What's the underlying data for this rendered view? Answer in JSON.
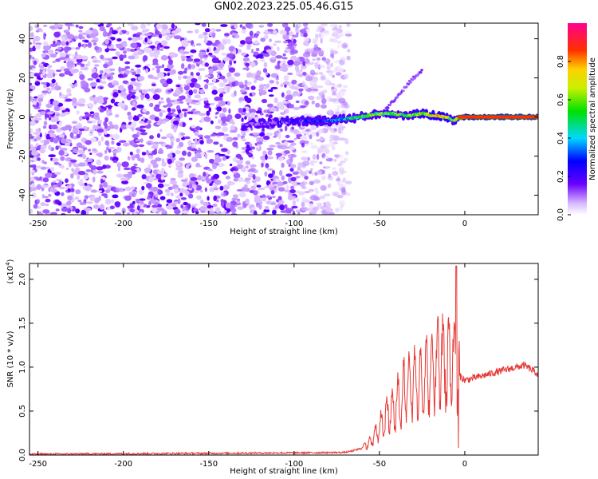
{
  "title": "GN02.2023.225.05.46.G15",
  "chart_data": [
    {
      "type": "heatmap",
      "xlabel": "Height of straight line (km)",
      "ylabel": "Frequency (Hz)",
      "xlim": [
        -255,
        43
      ],
      "ylim": [
        -50,
        48
      ],
      "xticks": [
        -250,
        -200,
        -150,
        -100,
        -50,
        0
      ],
      "yticks": [
        -40,
        -20,
        0,
        20,
        40
      ],
      "colorbar": {
        "label": "Normalized spectral amplitude",
        "range": [
          0.0,
          1.0
        ],
        "ticks": [
          "0.0",
          "0.2",
          "0.4",
          "0.6",
          "0.8"
        ],
        "colormap": "rainbow: white/lavender (0) → violet → blue → cyan → green → yellow → orange → red → magenta (1)"
      },
      "signal_track": {
        "x": [
          -130,
          -110,
          -100,
          -90,
          -80,
          -72,
          -65,
          -58,
          -52,
          -45,
          -40,
          -35,
          -30,
          -25,
          -20,
          -15,
          -10,
          -7,
          -5,
          0,
          10,
          20,
          30,
          43
        ],
        "frequency": [
          -4,
          -3,
          -2,
          -2,
          -2,
          -1,
          -0.5,
          0.5,
          1.5,
          2,
          1.5,
          0.5,
          1,
          2,
          1,
          0.5,
          -0.5,
          -2,
          -1,
          0,
          0,
          0,
          0,
          0
        ],
        "amplitude": [
          0.1,
          0.15,
          0.2,
          0.25,
          0.3,
          0.4,
          0.45,
          0.5,
          0.55,
          0.55,
          0.55,
          0.55,
          0.6,
          0.6,
          0.65,
          0.7,
          0.65,
          0.5,
          0.65,
          0.8,
          0.85,
          0.88,
          0.9,
          0.9
        ]
      },
      "harmonic_line": {
        "x": [
          -48,
          -42,
          -36,
          -30,
          -25
        ],
        "frequency": [
          2,
          8,
          14,
          20,
          24
        ]
      },
      "noise_region": {
        "x": [
          -255,
          -68
        ],
        "frequency": [
          -50,
          48
        ]
      }
    },
    {
      "type": "line",
      "xlabel": "Height of straight line (km)",
      "ylabel": "SNR (10 * v/v)",
      "scale_label": "(x10",
      "scale_exponent": "4",
      "scale_close": ")",
      "xlim": [
        -255,
        43
      ],
      "ylim": [
        0.0,
        2.18
      ],
      "xticks": [
        -250,
        -200,
        -150,
        -100,
        -50,
        0
      ],
      "yticks": [
        "0.0",
        "0.5",
        "1.0",
        "1.5",
        "2.0"
      ],
      "ytick_values": [
        0.0,
        0.5,
        1.0,
        1.5,
        2.0
      ],
      "series": [
        {
          "color": "#e53935",
          "x": [
            -255,
            -200,
            -150,
            -100,
            -70,
            -65,
            -60,
            -55,
            -50,
            -45,
            -40,
            -35,
            -30,
            -25,
            -20,
            -15,
            -10,
            -7,
            -5,
            -3,
            0,
            10,
            20,
            30,
            35,
            43
          ],
          "y": [
            0.01,
            0.015,
            0.02,
            0.025,
            0.03,
            0.05,
            0.08,
            0.15,
            0.3,
            0.45,
            0.6,
            0.75,
            0.8,
            0.85,
            0.95,
            1.05,
            1.1,
            1.15,
            1.0,
            0.9,
            0.85,
            0.9,
            0.95,
            1.0,
            1.02,
            0.92
          ]
        }
      ]
    }
  ]
}
